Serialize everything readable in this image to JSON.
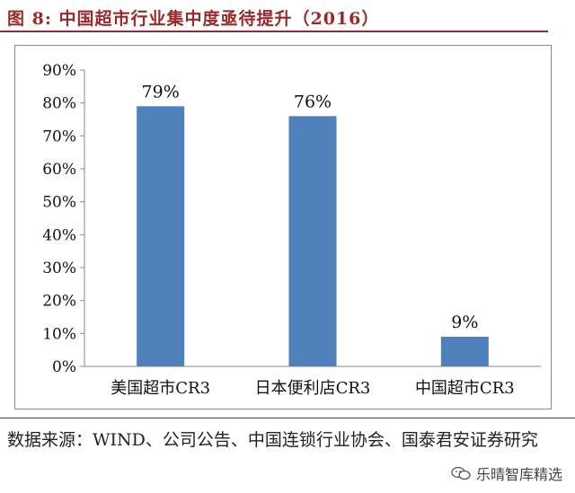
{
  "figure": {
    "label": "图 8:",
    "title": "中国超市行业集中度亟待提升（2016）"
  },
  "source_text": "数据来源：WIND、公司公告、中国连锁行业协会、国泰君安证券研究",
  "watermark_text": "乐晴智库精选",
  "colors": {
    "bar": "#4f81bd",
    "title": "#9a2a2a"
  },
  "chart_data": {
    "type": "bar",
    "title": "",
    "xlabel": "",
    "ylabel": "",
    "categories": [
      "美国超市CR3",
      "日本便利店CR3",
      "中国超市CR3"
    ],
    "values": [
      79,
      76,
      9
    ],
    "data_labels": [
      "79%",
      "76%",
      "9%"
    ],
    "ylim": [
      0,
      90
    ],
    "yticks": [
      0,
      10,
      20,
      30,
      40,
      50,
      60,
      70,
      80,
      90
    ],
    "ytick_labels": [
      "0%",
      "10%",
      "20%",
      "30%",
      "40%",
      "50%",
      "60%",
      "70%",
      "80%",
      "90%"
    ],
    "grid": false,
    "legend": "none"
  }
}
